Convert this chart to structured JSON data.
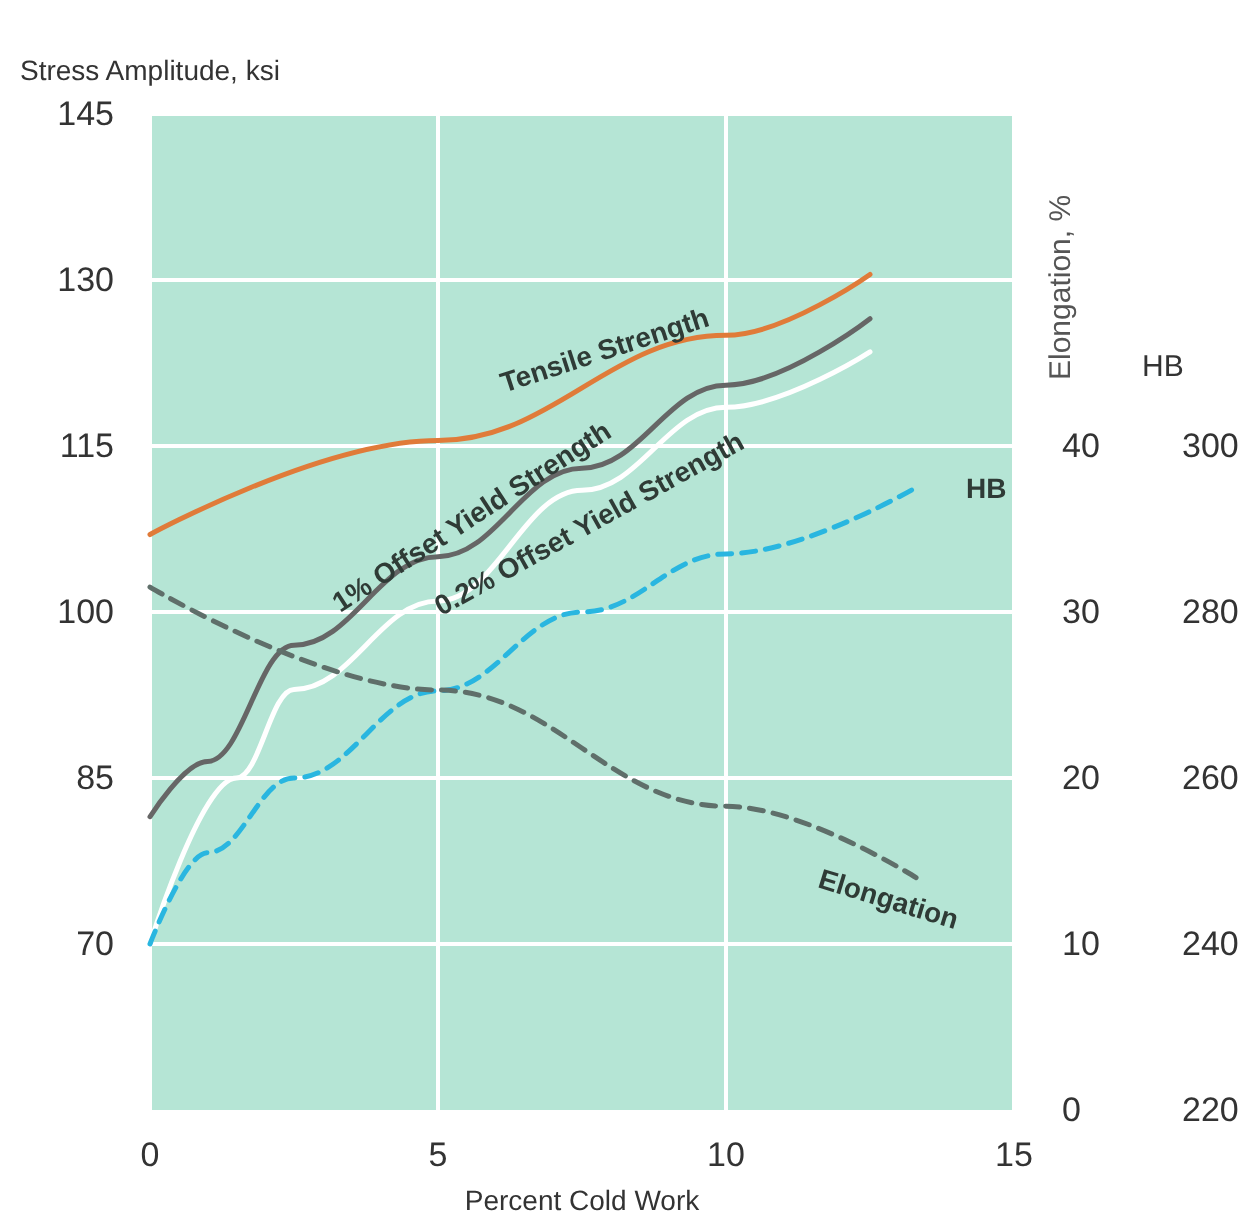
{
  "chart_data": {
    "type": "line",
    "xlabel": "Percent Cold Work",
    "ylabel": "Stress Amplitude, ksi",
    "y2label": "Elongation, %",
    "y3label": "HB",
    "xlim": [
      0,
      15
    ],
    "xticks": [
      0,
      5,
      10,
      15
    ],
    "ylim": [
      55,
      145
    ],
    "yticks": [
      70,
      85,
      100,
      115,
      130,
      145
    ],
    "y2lim": [
      0,
      60
    ],
    "y2ticks": [
      0,
      10,
      20,
      30,
      40
    ],
    "y3lim": [
      220,
      340
    ],
    "y3ticks": [
      220,
      240,
      260,
      280,
      300
    ],
    "grid": true,
    "legend": false,
    "marker": "none",
    "series": [
      {
        "name": "Tensile Strength",
        "color": "#e07b39",
        "line_style": "solid",
        "x": [
          0,
          5,
          10,
          12.5
        ],
        "values": [
          107,
          115.5,
          125,
          130.5
        ]
      },
      {
        "name": "1% Offset Yield Strength",
        "color": "#666666",
        "line_style": "solid",
        "x": [
          0,
          1,
          2.5,
          5,
          7.5,
          10,
          12.5
        ],
        "values": [
          81.5,
          86.5,
          97,
          105,
          113,
          120.5,
          126.5
        ]
      },
      {
        "name": "0.2% Offset Yield Strength",
        "color": "#ffffff",
        "line_style": "solid",
        "x": [
          0,
          1.5,
          2.5,
          5,
          7.5,
          10,
          12.5
        ],
        "values": [
          70,
          85,
          93,
          101,
          111,
          118.5,
          123.5
        ]
      },
      {
        "name": "HB",
        "color": "#29b6e0",
        "line_style": "dashed",
        "axis": "y3",
        "x": [
          0,
          1,
          2.5,
          5,
          7.5,
          10,
          13.3
        ],
        "values": [
          240,
          251,
          260,
          270.5,
          280,
          287,
          295
        ]
      },
      {
        "name": "Elongation",
        "color": "#5f6f6a",
        "line_style": "dashed",
        "axis": "y2",
        "x": [
          0,
          5,
          10,
          13.3
        ],
        "values": [
          31.5,
          25.3,
          18.3,
          14
        ]
      }
    ]
  }
}
